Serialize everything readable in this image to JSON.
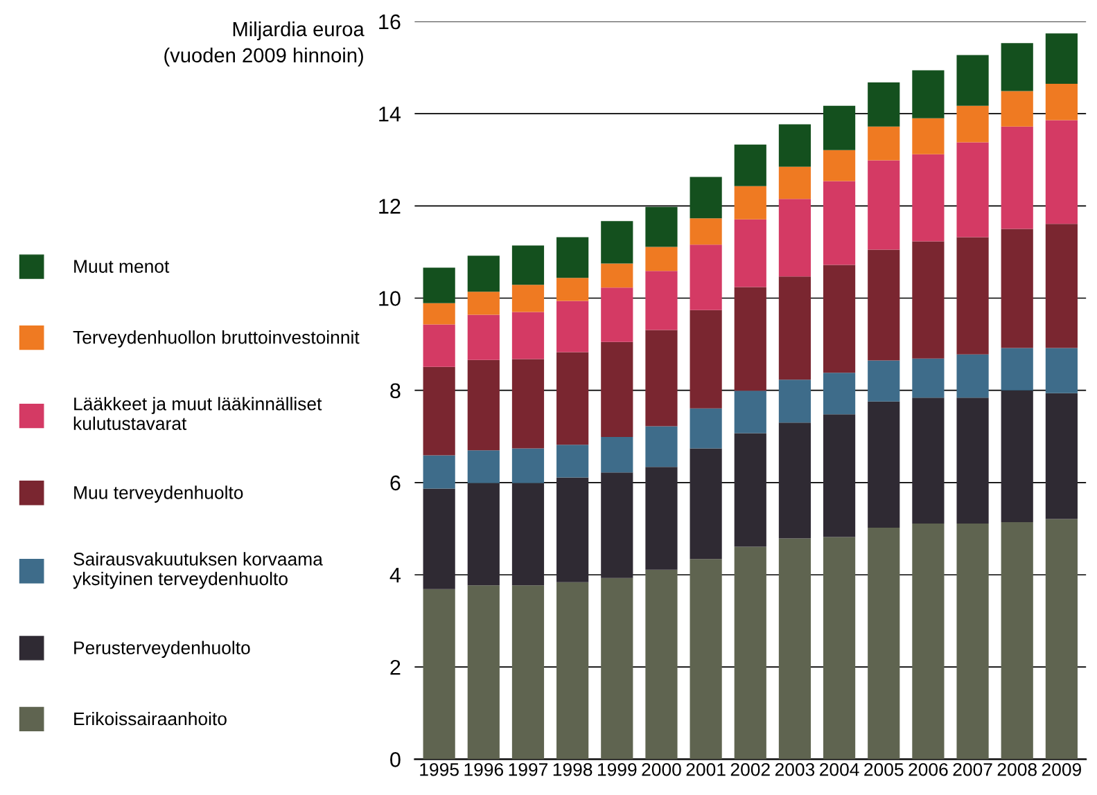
{
  "chart_data": {
    "type": "bar",
    "stacked": true,
    "ylabel": "Miljardia euroa\n(vuoden 2009 hinnoin)",
    "categories": [
      "1995",
      "1996",
      "1997",
      "1998",
      "1999",
      "2000",
      "2001",
      "2002",
      "2003",
      "2004",
      "2005",
      "2006",
      "2007",
      "2008",
      "2009"
    ],
    "series": [
      {
        "name": "Erikoissairaanhoito",
        "color": "#5f6450",
        "values": [
          3.69,
          3.77,
          3.77,
          3.84,
          3.93,
          4.11,
          4.34,
          4.61,
          4.79,
          4.82,
          5.02,
          5.11,
          5.11,
          5.14,
          5.21
        ]
      },
      {
        "name": "Perusterveydenhuolto",
        "color": "#2f2a33",
        "values": [
          2.18,
          2.22,
          2.22,
          2.27,
          2.29,
          2.23,
          2.4,
          2.46,
          2.51,
          2.66,
          2.74,
          2.73,
          2.73,
          2.86,
          2.73
        ]
      },
      {
        "name": "Sairausvakuutuksen korvaama\nyksityinen terveydenhuolto",
        "color": "#3e6c8a",
        "values": [
          0.72,
          0.71,
          0.75,
          0.71,
          0.77,
          0.88,
          0.87,
          0.92,
          0.93,
          0.9,
          0.89,
          0.85,
          0.94,
          0.92,
          0.98
        ]
      },
      {
        "name": "Muu terveydenhuolto",
        "color": "#7a2630",
        "values": [
          1.92,
          1.96,
          1.94,
          2.01,
          2.06,
          2.09,
          2.13,
          2.25,
          2.24,
          2.34,
          2.4,
          2.54,
          2.54,
          2.58,
          2.69
        ]
      },
      {
        "name": "Lääkkeet ja muut lääkinnälliset\nkulutustavarat",
        "color": "#d43a64",
        "values": [
          0.92,
          0.98,
          1.02,
          1.11,
          1.18,
          1.28,
          1.42,
          1.47,
          1.68,
          1.82,
          1.94,
          1.89,
          2.06,
          2.22,
          2.25
        ]
      },
      {
        "name": "Terveydenhuollon bruttoinvestoinnit",
        "color": "#ef7a22",
        "values": [
          0.46,
          0.5,
          0.59,
          0.5,
          0.52,
          0.52,
          0.57,
          0.72,
          0.7,
          0.67,
          0.73,
          0.78,
          0.79,
          0.77,
          0.79
        ]
      },
      {
        "name": "Muut menot",
        "color": "#14501e",
        "values": [
          0.77,
          0.78,
          0.85,
          0.88,
          0.92,
          0.87,
          0.9,
          0.9,
          0.92,
          0.96,
          0.96,
          1.04,
          1.1,
          1.04,
          1.09
        ]
      }
    ],
    "ylim": [
      0,
      16
    ],
    "yticks": [
      0,
      2,
      4,
      6,
      8,
      10,
      12,
      14,
      16
    ],
    "grid": "y",
    "legend": "left"
  }
}
